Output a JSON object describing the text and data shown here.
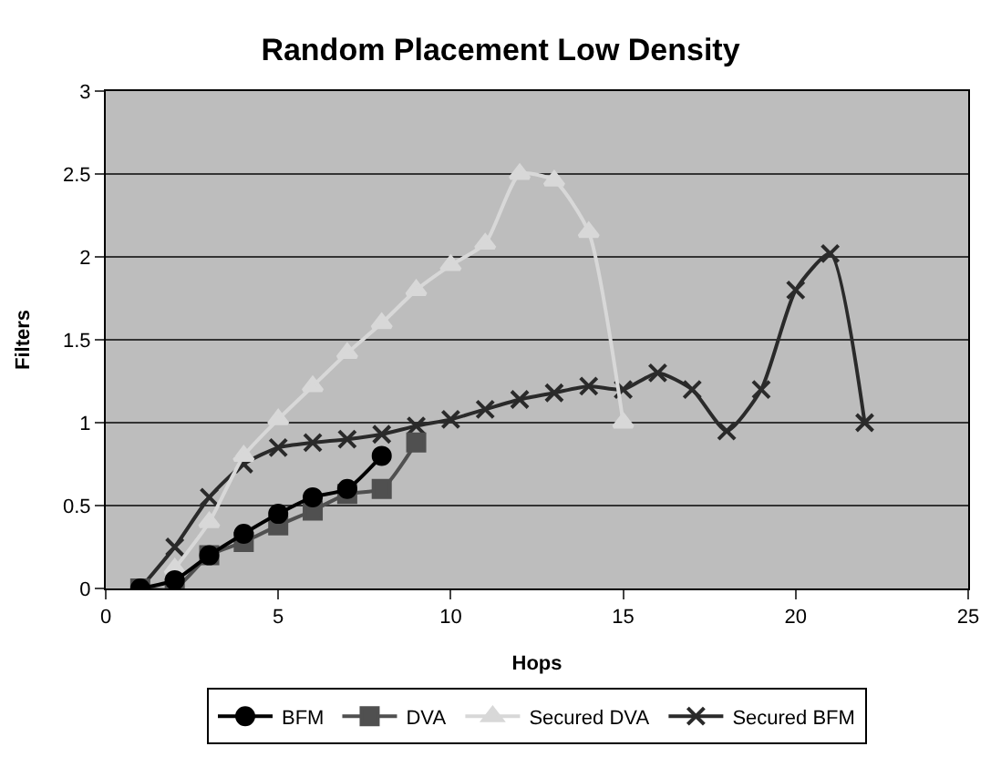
{
  "chart_data": {
    "type": "line",
    "title": "Random Placement Low Density",
    "xlabel": "Hops",
    "ylabel": "Filters",
    "xlim": [
      0,
      25
    ],
    "xticks": [
      0,
      5,
      10,
      15,
      20,
      25
    ],
    "ylim": [
      0,
      3
    ],
    "yticks": [
      0,
      0.5,
      1,
      1.5,
      2,
      2.5,
      3
    ],
    "grid": "y",
    "legend": "bottom",
    "series": [
      {
        "name": "BFM",
        "color": "#000000",
        "marker": "circle",
        "x": [
          1,
          2,
          3,
          4,
          5,
          6,
          7,
          8
        ],
        "values": [
          0,
          0.05,
          0.2,
          0.33,
          0.45,
          0.55,
          0.6,
          0.8
        ]
      },
      {
        "name": "DVA",
        "color": "#505050",
        "marker": "square",
        "x": [
          1,
          2,
          3,
          4,
          5,
          6,
          7,
          8,
          9
        ],
        "values": [
          0,
          0,
          0.2,
          0.28,
          0.38,
          0.47,
          0.57,
          0.6,
          0.88
        ]
      },
      {
        "name": "Secured DVA",
        "color": "#d8d8d8",
        "marker": "triangle",
        "x": [
          2,
          3,
          4,
          5,
          6,
          7,
          8,
          9,
          10,
          11,
          12,
          13,
          14,
          15
        ],
        "values": [
          0.12,
          0.4,
          0.8,
          1.02,
          1.22,
          1.42,
          1.6,
          1.8,
          1.95,
          2.08,
          2.5,
          2.46,
          2.15,
          1.0
        ]
      },
      {
        "name": "Secured BFM",
        "color": "#2a2a2a",
        "marker": "cross",
        "x": [
          1,
          2,
          3,
          4,
          5,
          6,
          7,
          8,
          9,
          10,
          11,
          12,
          13,
          14,
          15,
          16,
          17,
          18,
          19,
          20,
          21,
          22
        ],
        "values": [
          0,
          0.25,
          0.55,
          0.75,
          0.85,
          0.88,
          0.9,
          0.93,
          0.98,
          1.02,
          1.08,
          1.14,
          1.18,
          1.22,
          1.2,
          1.3,
          1.2,
          0.95,
          1.2,
          1.8,
          2.02,
          1.0
        ]
      }
    ]
  }
}
